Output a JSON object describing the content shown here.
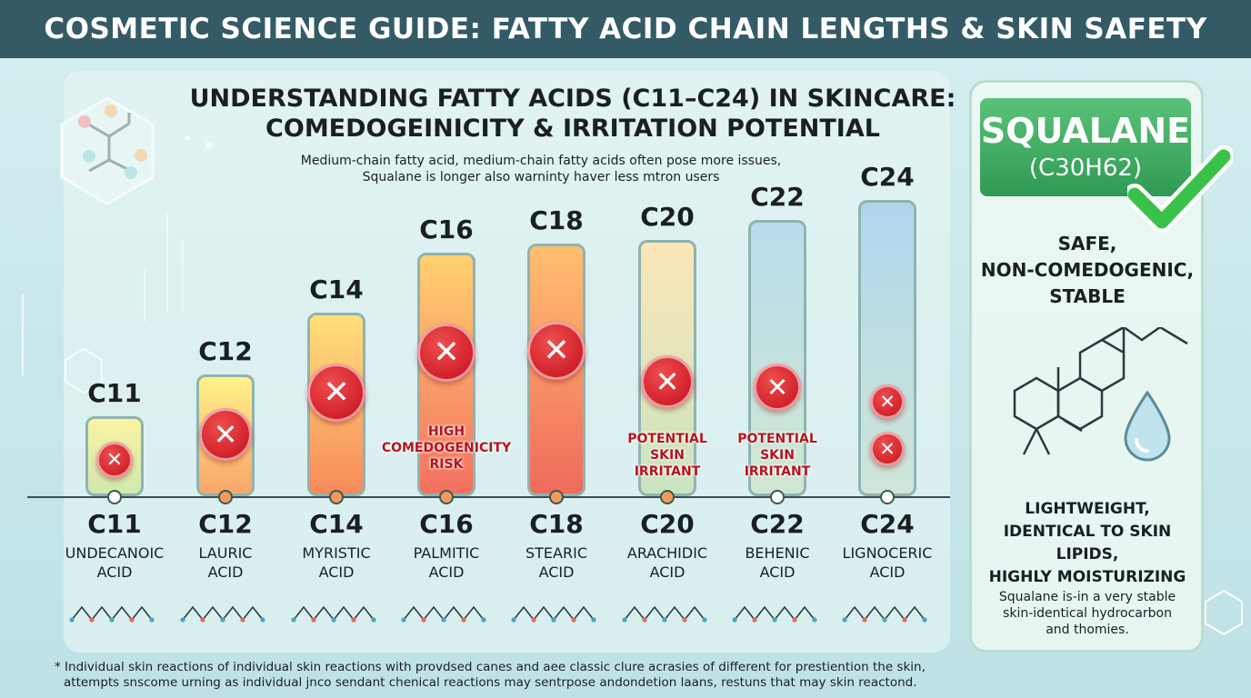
{
  "header": {
    "title": "COSMETIC SCIENCE GUIDE: FATTY ACID CHAIN LENGTHS & SKIN SAFETY"
  },
  "main": {
    "title_line1": "UNDERSTANDING FATTY ACIDS (C11–C24) IN SKINCARE:",
    "title_line2": "COMEDOGEINICITY & IRRITATION POTENTIAL",
    "subtitle_line1": "Medium-chain fatty acid, medium-chain fatty acids often pose more issues,",
    "subtitle_line2": "Squalane is longer also warninty haver less mtron users"
  },
  "acids": [
    {
      "code": "C11",
      "name_line1": "UNDECANOIC",
      "name_line2": "ACID",
      "x_marks": 1,
      "fill": [
        "#fbf3a0",
        "#cfe9b0"
      ]
    },
    {
      "code": "C12",
      "name_line1": "LAURIC",
      "name_line2": "ACID",
      "x_marks": 1,
      "fill": [
        "#fff28a",
        "#f7a66a"
      ]
    },
    {
      "code": "C14",
      "name_line1": "MYRISTIC",
      "name_line2": "ACID",
      "x_marks": 1,
      "fill": [
        "#ffe07a",
        "#f68a5a"
      ]
    },
    {
      "code": "C16",
      "name_line1": "PALMITIC",
      "name_line2": "ACID",
      "x_marks": 1,
      "fill": [
        "#ffd070",
        "#f47060"
      ],
      "risk": "HIGH\nCOMEDOGENICITY\nRISK"
    },
    {
      "code": "C18",
      "name_line1": "STEARIC",
      "name_line2": "ACID",
      "x_marks": 1,
      "fill": [
        "#ffc070",
        "#f06a5c"
      ]
    },
    {
      "code": "C20",
      "name_line1": "ARACHIDIC",
      "name_line2": "ACID",
      "x_marks": 1,
      "fill": [
        "#fbe6b8",
        "#c9e4c0"
      ],
      "risk": "POTENTIAL\nSKIN\nIRRITANT"
    },
    {
      "code": "C22",
      "name_line1": "BEHENIC",
      "name_line2": "ACID",
      "x_marks": 1,
      "fill": [
        "#b9dcec",
        "#cfe7d2"
      ],
      "risk": "POTENTIAL\nSKIN\nIRRITANT"
    },
    {
      "code": "C24",
      "name_line1": "LIGNOCERIC",
      "name_line2": "ACID",
      "x_marks": 2,
      "fill": [
        "#aed6ec",
        "#cfe6d8"
      ]
    }
  ],
  "squalane": {
    "name": "SQUALANE",
    "formula": "(C30H62)",
    "props_line1": "SAFE,",
    "props_line2": "NON-COMEDOGENIC,",
    "props_line3": "STABLE",
    "benefits_line1": "LIGHTWEIGHT,",
    "benefits_line2": "IDENTICAL TO SKIN LIPIDS,",
    "benefits_line3": "HIGHLY MOISTURIZING",
    "note_line1": "Squalane is-in a very stable",
    "note_line2": "skin-identical hydrocarbon",
    "note_line3": "and thomies."
  },
  "footnote": {
    "line1": "* Individual skin reactions of individual skin reactions with provdsed canes and aee classic clure acrasies of different for prestiention the skin,",
    "line2": "attempts snscome urning as individual jnco sendant chenical reactions may sentrpose andondetion laans, restuns that may skin reactond."
  },
  "colors": {
    "header_bg": "#345a66",
    "accent_green": "#2f9a55",
    "risk_red": "#b3141e",
    "check_green": "#39c24a"
  },
  "icons": [
    "x-mark-icon",
    "check-mark-icon",
    "water-drop-icon",
    "molecule-icon",
    "squalane-structure-icon"
  ]
}
